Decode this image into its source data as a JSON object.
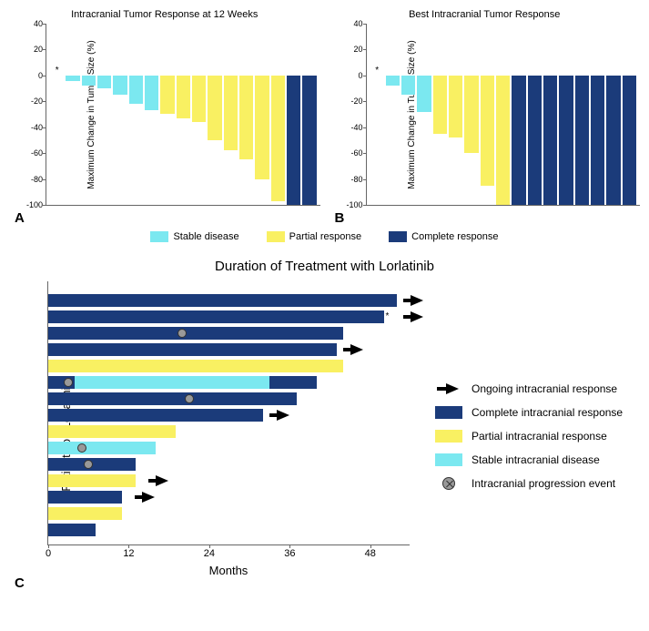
{
  "colors": {
    "stable": "#7be8f0",
    "partial": "#f9f062",
    "complete": "#1b3b7a",
    "progression_fill": "#999999",
    "progression_stroke": "#333333",
    "axis": "#666666",
    "background": "#ffffff"
  },
  "panelA": {
    "letter": "A",
    "title": "Intracranial Tumor Response at 12 Weeks",
    "ylabel": "Maximum Change in Tumor Size (%)",
    "ylim": [
      -100,
      40
    ],
    "yticks": [
      -100,
      -80,
      -60,
      -40,
      -20,
      0,
      20,
      40
    ],
    "star_index": 0,
    "bars": [
      {
        "v": 0,
        "cat": "stable"
      },
      {
        "v": -4,
        "cat": "stable"
      },
      {
        "v": -8,
        "cat": "stable"
      },
      {
        "v": -10,
        "cat": "stable"
      },
      {
        "v": -15,
        "cat": "stable"
      },
      {
        "v": -22,
        "cat": "stable"
      },
      {
        "v": -27,
        "cat": "stable"
      },
      {
        "v": -30,
        "cat": "partial"
      },
      {
        "v": -33,
        "cat": "partial"
      },
      {
        "v": -36,
        "cat": "partial"
      },
      {
        "v": -50,
        "cat": "partial"
      },
      {
        "v": -58,
        "cat": "partial"
      },
      {
        "v": -65,
        "cat": "partial"
      },
      {
        "v": -80,
        "cat": "partial"
      },
      {
        "v": -97,
        "cat": "partial"
      },
      {
        "v": -100,
        "cat": "complete"
      },
      {
        "v": -100,
        "cat": "complete"
      }
    ]
  },
  "panelB": {
    "letter": "B",
    "title": "Best Intracranial Tumor Response",
    "ylabel": "Maximum Change in Tumor Size (%)",
    "ylim": [
      -100,
      40
    ],
    "yticks": [
      -100,
      -80,
      -60,
      -40,
      -20,
      0,
      20,
      40
    ],
    "star_index": 0,
    "bars": [
      {
        "v": 0,
        "cat": "stable"
      },
      {
        "v": -8,
        "cat": "stable"
      },
      {
        "v": -15,
        "cat": "stable"
      },
      {
        "v": -28,
        "cat": "stable"
      },
      {
        "v": -45,
        "cat": "partial"
      },
      {
        "v": -48,
        "cat": "partial"
      },
      {
        "v": -60,
        "cat": "partial"
      },
      {
        "v": -85,
        "cat": "partial"
      },
      {
        "v": -100,
        "cat": "partial"
      },
      {
        "v": -100,
        "cat": "complete"
      },
      {
        "v": -100,
        "cat": "complete"
      },
      {
        "v": -100,
        "cat": "complete"
      },
      {
        "v": -100,
        "cat": "complete"
      },
      {
        "v": -100,
        "cat": "complete"
      },
      {
        "v": -100,
        "cat": "complete"
      },
      {
        "v": -100,
        "cat": "complete"
      },
      {
        "v": -100,
        "cat": "complete"
      }
    ]
  },
  "legend_top": {
    "stable": "Stable disease",
    "partial": "Partial response",
    "complete": "Complete response"
  },
  "panelC": {
    "letter": "C",
    "title": "Duration of Treatment with Lorlatinib",
    "ylabel": "Patients on Lorlatinib",
    "xlabel": "Months",
    "xlim": [
      0,
      54
    ],
    "xticks": [
      0,
      12,
      24,
      36,
      48
    ],
    "lanes": [
      {
        "segments": [
          {
            "from": 0,
            "to": 52,
            "cat": "complete"
          }
        ],
        "arrow": 54,
        "events": [],
        "star": false
      },
      {
        "segments": [
          {
            "from": 0,
            "to": 50,
            "cat": "complete"
          }
        ],
        "arrow": 54,
        "events": [],
        "star": true
      },
      {
        "segments": [
          {
            "from": 0,
            "to": 44,
            "cat": "complete"
          }
        ],
        "arrow": null,
        "events": [
          20
        ],
        "star": false
      },
      {
        "segments": [
          {
            "from": 0,
            "to": 43,
            "cat": "complete"
          }
        ],
        "arrow": 45,
        "events": [],
        "star": false
      },
      {
        "segments": [
          {
            "from": 0,
            "to": 44,
            "cat": "partial"
          }
        ],
        "arrow": null,
        "events": [],
        "star": false
      },
      {
        "segments": [
          {
            "from": 0,
            "to": 4,
            "cat": "complete"
          },
          {
            "from": 4,
            "to": 33,
            "cat": "stable"
          },
          {
            "from": 33,
            "to": 40,
            "cat": "complete"
          }
        ],
        "arrow": null,
        "events": [
          3
        ],
        "star": false
      },
      {
        "segments": [
          {
            "from": 0,
            "to": 37,
            "cat": "complete"
          }
        ],
        "arrow": null,
        "events": [
          21
        ],
        "star": false
      },
      {
        "segments": [
          {
            "from": 0,
            "to": 32,
            "cat": "complete"
          }
        ],
        "arrow": 34,
        "events": [],
        "star": false
      },
      {
        "segments": [
          {
            "from": 0,
            "to": 19,
            "cat": "partial"
          }
        ],
        "arrow": null,
        "events": [],
        "star": false
      },
      {
        "segments": [
          {
            "from": 0,
            "to": 16,
            "cat": "stable"
          }
        ],
        "arrow": null,
        "events": [
          5
        ],
        "star": false
      },
      {
        "segments": [
          {
            "from": 0,
            "to": 13,
            "cat": "complete"
          }
        ],
        "arrow": null,
        "events": [
          6
        ],
        "star": false
      },
      {
        "segments": [
          {
            "from": 0,
            "to": 13,
            "cat": "partial"
          }
        ],
        "arrow": 16,
        "events": [],
        "star": false
      },
      {
        "segments": [
          {
            "from": 0,
            "to": 11,
            "cat": "complete"
          }
        ],
        "arrow": 14,
        "events": [],
        "star": false
      },
      {
        "segments": [
          {
            "from": 0,
            "to": 11,
            "cat": "partial"
          }
        ],
        "arrow": null,
        "events": [],
        "star": false
      },
      {
        "segments": [
          {
            "from": 0,
            "to": 7,
            "cat": "complete"
          }
        ],
        "arrow": null,
        "events": [],
        "star": false
      }
    ]
  },
  "legendC": {
    "ongoing": "Ongoing intracranial response",
    "complete": "Complete intracranial response",
    "partial": "Partial intracranial response",
    "stable": "Stable intracranial disease",
    "progression": "Intracranial progression event"
  }
}
